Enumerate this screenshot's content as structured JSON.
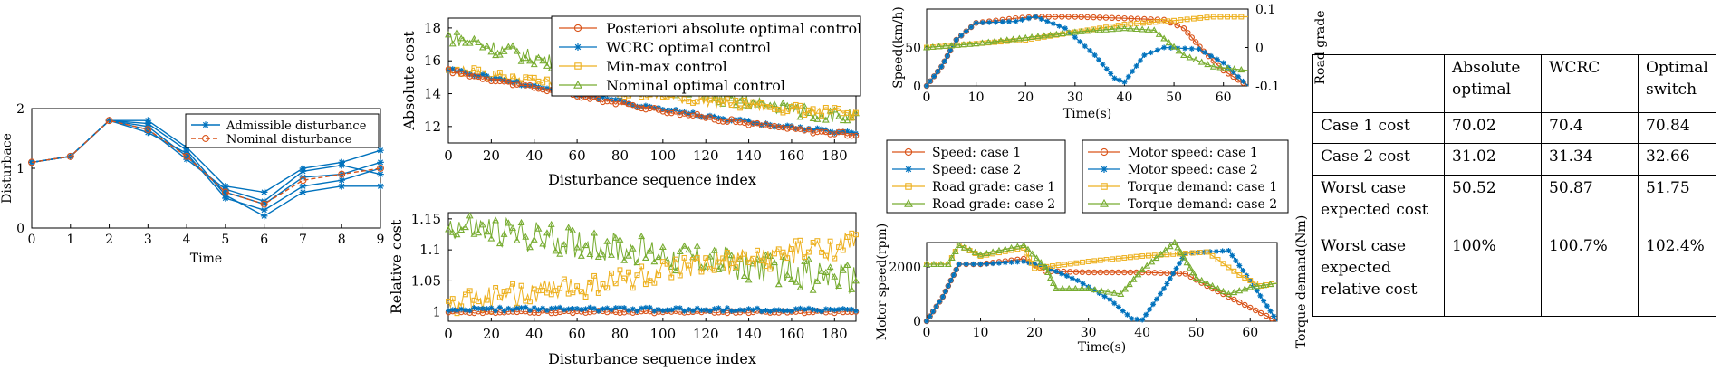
{
  "colors": {
    "red": "#d95319",
    "blue": "#0072bd",
    "yellow": "#edb120",
    "green": "#77ac30"
  },
  "chart_data": [
    {
      "type": "line",
      "title": "",
      "xlabel": "Time",
      "ylabel": "Disturbace",
      "xlim": [
        0,
        9
      ],
      "ylim": [
        0,
        2
      ],
      "xticks": [
        "0",
        "1",
        "2",
        "3",
        "4",
        "5",
        "6",
        "7",
        "8",
        "9"
      ],
      "yticks": [
        "0",
        "1",
        "2"
      ],
      "legend": {
        "placement": "top-right",
        "entries": [
          "Admissible disturbance",
          "Nominal disturbance"
        ]
      },
      "x": [
        0,
        1,
        2,
        3,
        4,
        5,
        6,
        7,
        8,
        9
      ],
      "series": [
        {
          "name": "Admissible disturbance",
          "color": "blue",
          "marker": "star",
          "values": [
            1.1,
            1.2,
            1.8,
            1.8,
            1.35,
            0.7,
            0.6,
            1.0,
            1.1,
            1.3
          ]
        },
        {
          "name": "Admissible disturbance",
          "color": "blue",
          "marker": "star",
          "values": [
            1.1,
            1.2,
            1.8,
            1.7,
            1.2,
            0.6,
            0.4,
            0.85,
            0.9,
            1.1
          ]
        },
        {
          "name": "Admissible disturbance",
          "color": "blue",
          "marker": "star",
          "values": [
            1.1,
            1.2,
            1.8,
            1.6,
            1.25,
            0.5,
            0.3,
            0.7,
            0.8,
            1.0
          ]
        },
        {
          "name": "Admissible disturbance",
          "color": "blue",
          "marker": "star",
          "values": [
            1.1,
            1.2,
            1.8,
            1.75,
            1.3,
            0.55,
            0.2,
            0.6,
            0.7,
            0.7
          ]
        },
        {
          "name": "Admissible disturbance",
          "color": "blue",
          "marker": "star",
          "values": [
            1.1,
            1.2,
            1.8,
            1.65,
            1.15,
            0.65,
            0.45,
            0.95,
            1.05,
            0.9
          ]
        },
        {
          "name": "Nominal disturbance",
          "color": "red",
          "marker": "circle",
          "dashed": true,
          "values": [
            1.1,
            1.2,
            1.8,
            1.65,
            1.2,
            0.6,
            0.4,
            0.8,
            0.9,
            1.0
          ]
        }
      ]
    },
    {
      "type": "line",
      "title": "",
      "xlabel": "Disturbance sequence index",
      "ylabel": "Absolute cost",
      "xlim": [
        0,
        190
      ],
      "ylim": [
        11,
        18.6
      ],
      "xticks": [
        "0",
        "20",
        "40",
        "60",
        "80",
        "100",
        "120",
        "140",
        "160",
        "180"
      ],
      "yticks": [
        "12",
        "14",
        "16",
        "18"
      ],
      "legend": {
        "placement": "top-right",
        "entries": [
          "Posteriori absolute optimal control",
          "WCRC optimal control",
          "Min-max control",
          "Nominal optimal control"
        ]
      },
      "series": [
        {
          "name": "Posteriori absolute optimal control",
          "color": "red",
          "marker": "circle",
          "start": 15.4,
          "end": 11.5
        },
        {
          "name": "WCRC optimal control",
          "color": "blue",
          "marker": "star",
          "start": 15.5,
          "end": 11.6
        },
        {
          "name": "Min-max control",
          "color": "yellow",
          "marker": "square",
          "start": 15.5,
          "end": 12.8
        },
        {
          "name": "Nominal optimal control",
          "color": "green",
          "marker": "triangle",
          "start": 17.5,
          "end": 12.6
        }
      ]
    },
    {
      "type": "line",
      "title": "",
      "xlabel": "Disturbance sequence index",
      "ylabel": "Relative cost",
      "xlim": [
        0,
        190
      ],
      "ylim": [
        0.985,
        1.16
      ],
      "xticks": [
        "0",
        "20",
        "40",
        "60",
        "80",
        "100",
        "120",
        "140",
        "160",
        "180"
      ],
      "yticks": [
        "1",
        "1.05",
        "1.1",
        "1.15"
      ],
      "series": [
        {
          "name": "Posteriori absolute optimal control",
          "color": "red",
          "marker": "circle",
          "start": 1.0,
          "end": 1.0
        },
        {
          "name": "WCRC optimal control",
          "color": "blue",
          "marker": "star",
          "start": 1.005,
          "end": 1.003
        },
        {
          "name": "Min-max control",
          "color": "yellow",
          "marker": "square",
          "start": 1.01,
          "end": 1.11
        },
        {
          "name": "Nominal optimal control",
          "color": "green",
          "marker": "triangle",
          "start": 1.14,
          "end": 1.05
        }
      ]
    },
    {
      "type": "line",
      "title": "",
      "xlabel": "Time(s)",
      "ylabel": "Speed(km/h)",
      "y2label": "Road grade",
      "xlim": [
        0,
        65
      ],
      "ylim": [
        0,
        100
      ],
      "y2lim": [
        -0.1,
        0.1
      ],
      "xticks": [
        "0",
        "10",
        "20",
        "30",
        "40",
        "50",
        "60"
      ],
      "yticks": [
        "0",
        "50"
      ],
      "y2ticks": [
        "-0.1",
        "0",
        "0.1"
      ],
      "series": [
        {
          "name": "Speed: case 1",
          "color": "red",
          "marker": "circle",
          "axis": "left",
          "x": [
            0,
            3,
            6,
            10,
            18,
            22,
            30,
            40,
            48,
            52,
            56,
            60,
            65
          ],
          "values": [
            0,
            25,
            60,
            82,
            88,
            90,
            90,
            88,
            86,
            75,
            45,
            20,
            0
          ]
        },
        {
          "name": "Speed: case 2",
          "color": "blue",
          "marker": "star",
          "axis": "left",
          "x": [
            0,
            3,
            6,
            10,
            18,
            22,
            28,
            34,
            38,
            40,
            44,
            48,
            55,
            60,
            65
          ],
          "values": [
            0,
            25,
            60,
            82,
            84,
            90,
            75,
            40,
            10,
            5,
            40,
            50,
            48,
            30,
            0
          ]
        },
        {
          "name": "Road grade: case 1",
          "color": "yellow",
          "marker": "square",
          "axis": "right",
          "x": [
            0,
            10,
            20,
            30,
            40,
            50,
            58,
            65
          ],
          "values": [
            0.0,
            0.01,
            0.02,
            0.04,
            0.06,
            0.07,
            0.08,
            0.08
          ]
        },
        {
          "name": "Road grade: case 2",
          "color": "green",
          "marker": "triangle",
          "axis": "right",
          "x": [
            0,
            10,
            20,
            30,
            40,
            46,
            52,
            58,
            65
          ],
          "values": [
            0.0,
            0.01,
            0.025,
            0.04,
            0.05,
            0.045,
            -0.02,
            -0.05,
            -0.06
          ]
        }
      ]
    },
    {
      "type": "line",
      "title": "",
      "xlabel": "Time(s)",
      "ylabel": "Motor speed(rpm)",
      "y2label": "Torque demand(Nm)",
      "xlim": [
        0,
        65
      ],
      "ylim": [
        0,
        2900
      ],
      "xticks": [
        "0",
        "10",
        "20",
        "30",
        "40",
        "50",
        "60"
      ],
      "yticks": [
        "0",
        "2000"
      ],
      "series": [
        {
          "name": "Motor speed: case 1",
          "color": "red",
          "marker": "circle",
          "x": [
            0,
            3,
            6,
            10,
            18,
            22,
            30,
            40,
            48,
            52,
            56,
            60,
            65
          ],
          "values": [
            0,
            900,
            2100,
            2100,
            2300,
            1850,
            1800,
            1800,
            1750,
            1300,
            900,
            500,
            0
          ]
        },
        {
          "name": "Motor speed: case 2",
          "color": "blue",
          "marker": "star",
          "x": [
            0,
            3,
            6,
            10,
            18,
            22,
            28,
            34,
            38,
            40,
            44,
            48,
            56,
            60,
            65
          ],
          "values": [
            0,
            900,
            2100,
            2100,
            2200,
            2000,
            1500,
            800,
            100,
            50,
            1200,
            2500,
            2600,
            1500,
            0
          ]
        },
        {
          "name": "Torque demand: case 1",
          "color": "yellow",
          "marker": "square",
          "x": [
            0,
            4,
            6,
            10,
            18,
            20,
            30,
            40,
            48,
            52,
            58,
            62,
            65
          ],
          "values": [
            2100,
            2100,
            2800,
            2400,
            2700,
            1950,
            2200,
            2400,
            2500,
            2550,
            1700,
            1300,
            1400
          ]
        },
        {
          "name": "Torque demand: case 2",
          "color": "green",
          "marker": "triangle",
          "x": [
            0,
            4,
            6,
            10,
            18,
            22,
            24,
            30,
            36,
            40,
            46,
            50,
            56,
            60,
            65
          ],
          "values": [
            2100,
            2100,
            2800,
            2450,
            2800,
            2000,
            1200,
            1200,
            1000,
            1900,
            2900,
            1600,
            1000,
            1250,
            1400
          ]
        }
      ],
      "legends": [
        {
          "placement": "top-left",
          "entries": [
            "Speed: case 1",
            "Speed: case 2",
            "Road grade: case 1",
            "Road grade: case 2"
          ]
        },
        {
          "placement": "top-right",
          "entries": [
            "Motor speed: case 1",
            "Motor speed: case 2",
            "Torque demand: case 1",
            "Torque demand: case 2"
          ]
        }
      ]
    },
    {
      "type": "table",
      "headers": [
        "",
        "Absolute optimal",
        "WCRC",
        "Optimal switch"
      ],
      "rows": [
        [
          "Case 1 cost",
          "70.02",
          "70.4",
          "70.84"
        ],
        [
          "Case 2 cost",
          "31.02",
          "31.34",
          "32.66"
        ],
        [
          "Worst case expected cost",
          "50.52",
          "50.87",
          "51.75"
        ],
        [
          "Worst case expected relative cost",
          "100%",
          "100.7%",
          "102.4%"
        ]
      ]
    }
  ]
}
